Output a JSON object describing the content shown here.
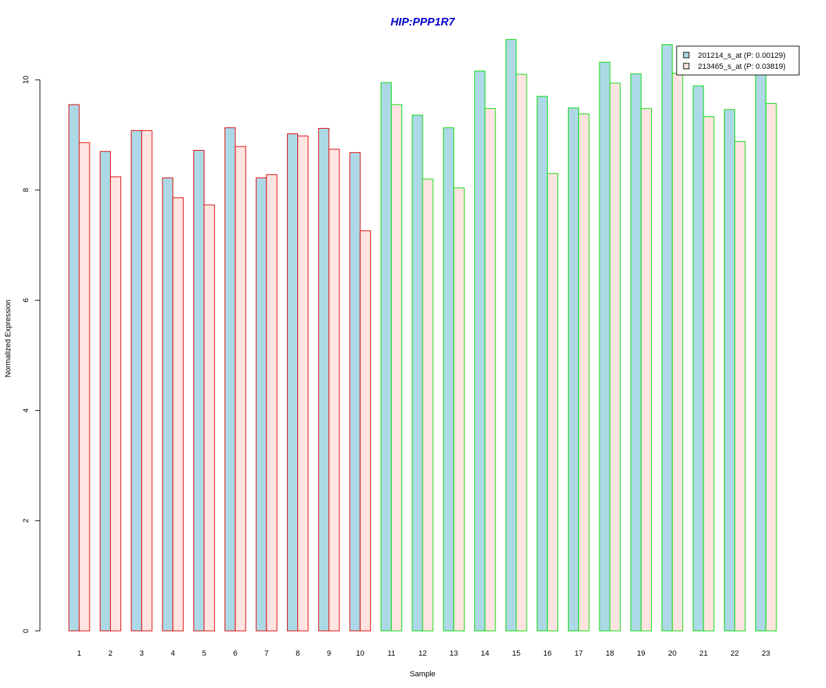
{
  "chart_data": {
    "type": "bar",
    "title": "HIP:PPP1R7",
    "xlabel": "Sample",
    "ylabel": "Normalized Expression",
    "ylim": [
      0,
      10.8
    ],
    "yticks": [
      0,
      2,
      4,
      6,
      8,
      10
    ],
    "grid": false,
    "legend_position": "top-right",
    "categories": [
      "1",
      "2",
      "3",
      "4",
      "5",
      "6",
      "7",
      "8",
      "9",
      "10",
      "11",
      "12",
      "13",
      "14",
      "15",
      "16",
      "17",
      "18",
      "19",
      "20",
      "21",
      "22",
      "23"
    ],
    "group_border_colors": [
      "#dd0000",
      "#dd0000",
      "#dd0000",
      "#dd0000",
      "#dd0000",
      "#dd0000",
      "#dd0000",
      "#dd0000",
      "#dd0000",
      "#dd0000",
      "#00dd00",
      "#00dd00",
      "#00dd00",
      "#00dd00",
      "#00dd00",
      "#00dd00",
      "#00dd00",
      "#00dd00",
      "#00dd00",
      "#00dd00",
      "#00dd00",
      "#00dd00",
      "#00dd00"
    ],
    "series": [
      {
        "name": "201214_s_at (P: 0.00129)",
        "fill": "#add8e6",
        "values": [
          9.55,
          8.7,
          9.08,
          8.22,
          8.72,
          9.13,
          8.22,
          9.02,
          9.12,
          8.68,
          9.95,
          9.36,
          9.13,
          10.16,
          10.73,
          9.7,
          9.49,
          10.32,
          10.11,
          10.64,
          9.89,
          9.46,
          10.12
        ]
      },
      {
        "name": "213465_s_at (P: 0.03819)",
        "fill": "#ffe4e1",
        "values": [
          8.86,
          8.24,
          9.08,
          7.86,
          7.73,
          8.79,
          8.28,
          8.98,
          8.74,
          7.26,
          9.55,
          8.2,
          8.04,
          9.48,
          10.1,
          8.3,
          9.38,
          9.94,
          9.48,
          10.12,
          9.33,
          8.88,
          9.57
        ]
      }
    ]
  }
}
